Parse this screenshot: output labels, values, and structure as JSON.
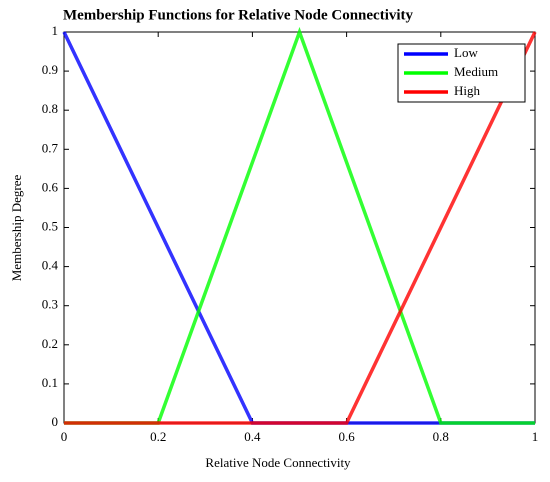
{
  "chart_data": {
    "type": "line",
    "title": "Membership Functions for Relative Node Connectivity",
    "x_label": "Relative Node Connectivity",
    "y_label": "Membership Degree",
    "xlim": [
      0,
      1
    ],
    "xticks": [
      0,
      0.2,
      0.4,
      0.6,
      0.8,
      1
    ],
    "ylim": [
      0,
      1
    ],
    "yticks": [
      0,
      0.1,
      0.2,
      0.3,
      0.4,
      0.5,
      0.6,
      0.7,
      0.8,
      0.9,
      1
    ],
    "grid": false,
    "legend": "upper right",
    "series": [
      {
        "name": "Low",
        "color": "#0000ff",
        "x": [
          0,
          0.4,
          1
        ],
        "values": [
          1,
          0,
          0
        ]
      },
      {
        "name": "Medium",
        "color": "#00ff00",
        "x": [
          0,
          0.2,
          0.5,
          0.8,
          1
        ],
        "values": [
          0,
          0,
          1,
          0,
          0
        ]
      },
      {
        "name": "High",
        "color": "#ff0000",
        "x": [
          0,
          0.6,
          1
        ],
        "values": [
          0,
          0,
          1
        ]
      }
    ]
  }
}
